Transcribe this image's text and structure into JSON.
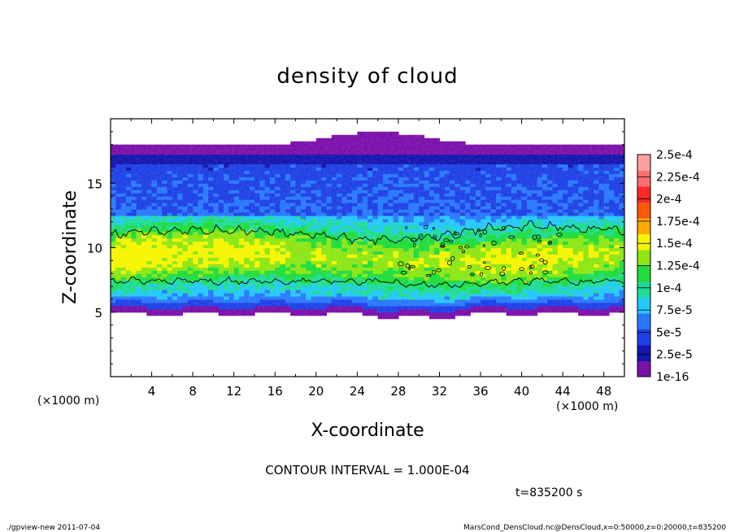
{
  "chart_data": {
    "type": "heatmap",
    "title": "density of cloud",
    "xlabel": "X-coordinate",
    "ylabel": "Z-coordinate",
    "x_unit": "(×1000 m)",
    "y_unit": "(×1000 m)",
    "xlim": [
      0,
      50
    ],
    "ylim": [
      0,
      20
    ],
    "x_ticks": [
      4,
      8,
      12,
      16,
      20,
      24,
      28,
      32,
      36,
      40,
      44,
      48
    ],
    "y_ticks": [
      5,
      10,
      15
    ],
    "colorbar": {
      "labels": [
        "1e-16",
        "2.5e-5",
        "5e-5",
        "7.5e-5",
        "1e-4",
        "1.25e-4",
        "1.5e-4",
        "1.75e-4",
        "2e-4",
        "2.25e-4",
        "2.5e-4"
      ],
      "values": [
        1e-16,
        2.5e-05,
        5e-05,
        7.5e-05,
        0.0001,
        0.000125,
        0.00015,
        0.000175,
        0.0002,
        0.000225,
        0.00025
      ],
      "colors": [
        "#7a10aa",
        "#1515b0",
        "#1e40e6",
        "#2878ff",
        "#24c8ff",
        "#1edc96",
        "#20dc3c",
        "#8ce614",
        "#f5f500",
        "#ffaa00",
        "#ff5a0a",
        "#ff2828",
        "#ff6e6e",
        "#ffa0a0"
      ]
    },
    "contour_interval": "CONTOUR INTERVAL = 1.000E-04",
    "time_label": "t=835200 s",
    "grid": false,
    "legend": "right"
  },
  "footer": {
    "left": "./gpview-new   2011-07-04",
    "right": "MarsCond_DensCloud.nc@DensCloud,x=0:50000,z=0:20000,t=835200"
  }
}
